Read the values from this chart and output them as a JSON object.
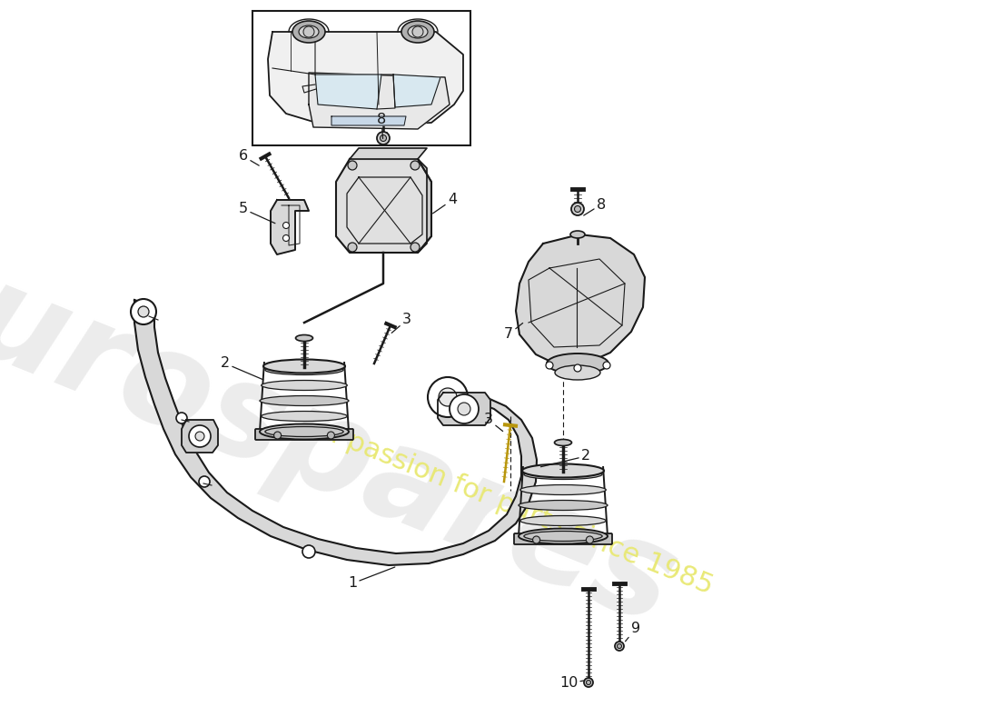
{
  "bg": "#ffffff",
  "lc": "#1a1a1a",
  "fill_light": "#e8e8e8",
  "fill_mid": "#d0d0d0",
  "fill_dark": "#b8b8b8",
  "wm_gray": "#dddddd",
  "wm_yellow": "#e8e870",
  "frame_inner_color": "#e0e0e0",
  "frame_outer_color": "#c8c8c8"
}
